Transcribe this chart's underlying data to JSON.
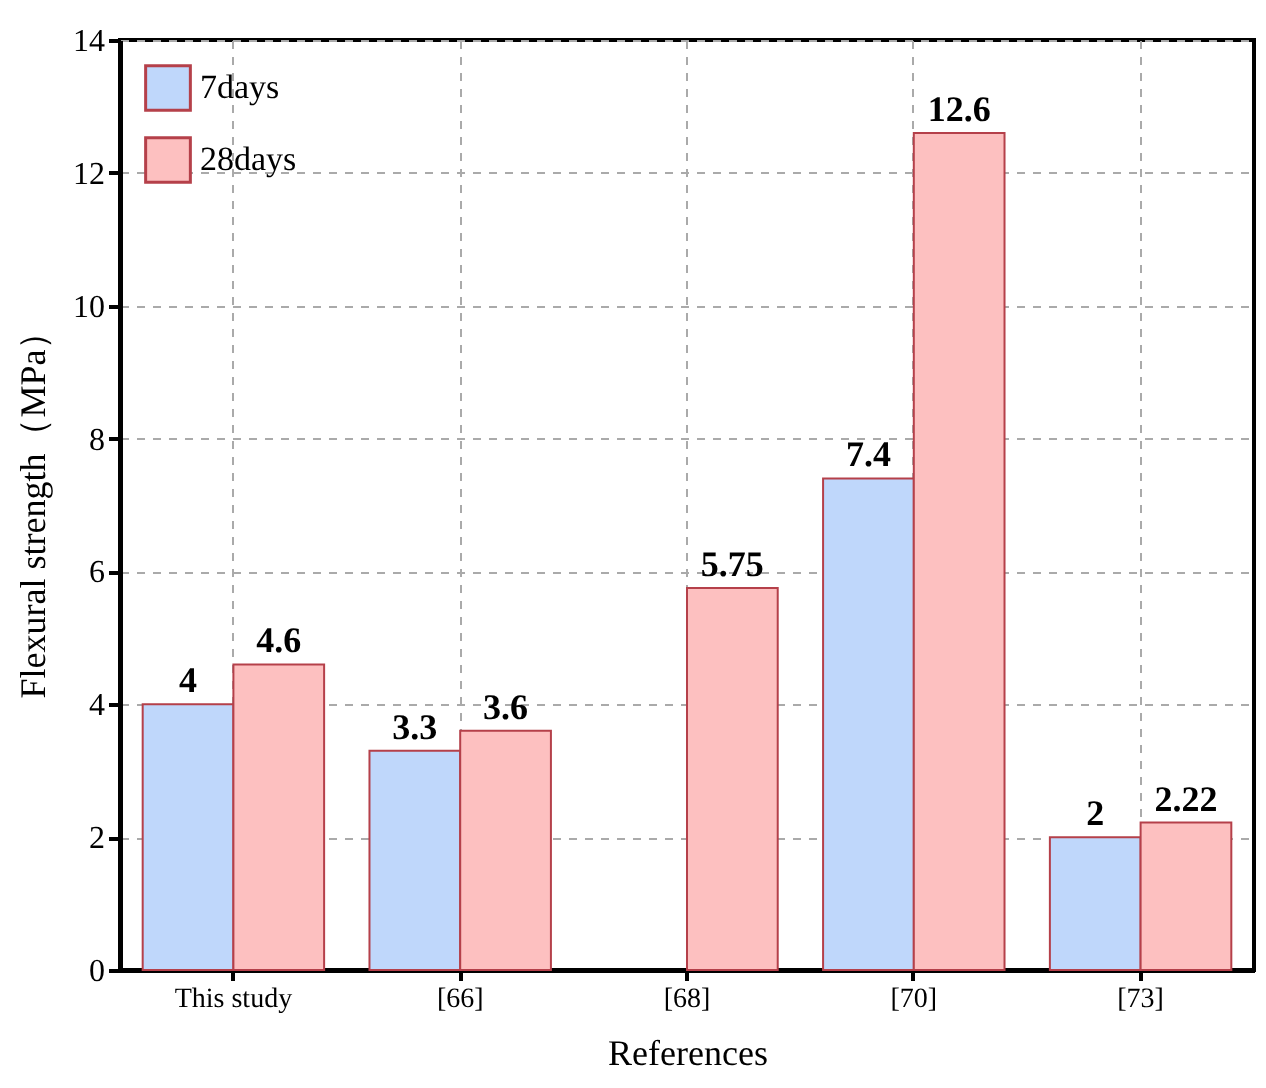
{
  "chart_data": {
    "type": "bar",
    "xlabel": "References",
    "ylabel": "Flexural strength（MPa）",
    "categories": [
      "This study",
      "[66]",
      "[68]",
      "[70]",
      "[73]"
    ],
    "series": [
      {
        "name": "7days",
        "color": "#bfd7fb",
        "values": [
          4,
          3.3,
          null,
          7.4,
          2
        ]
      },
      {
        "name": "28days",
        "color": "#fdc0c0",
        "values": [
          4.6,
          3.6,
          5.75,
          12.6,
          2.22
        ]
      }
    ],
    "ylim": [
      0,
      14
    ],
    "yticks": [
      0,
      2,
      4,
      6,
      8,
      10,
      12,
      14
    ],
    "grid": true,
    "legend": "top left",
    "data_labels": true
  }
}
